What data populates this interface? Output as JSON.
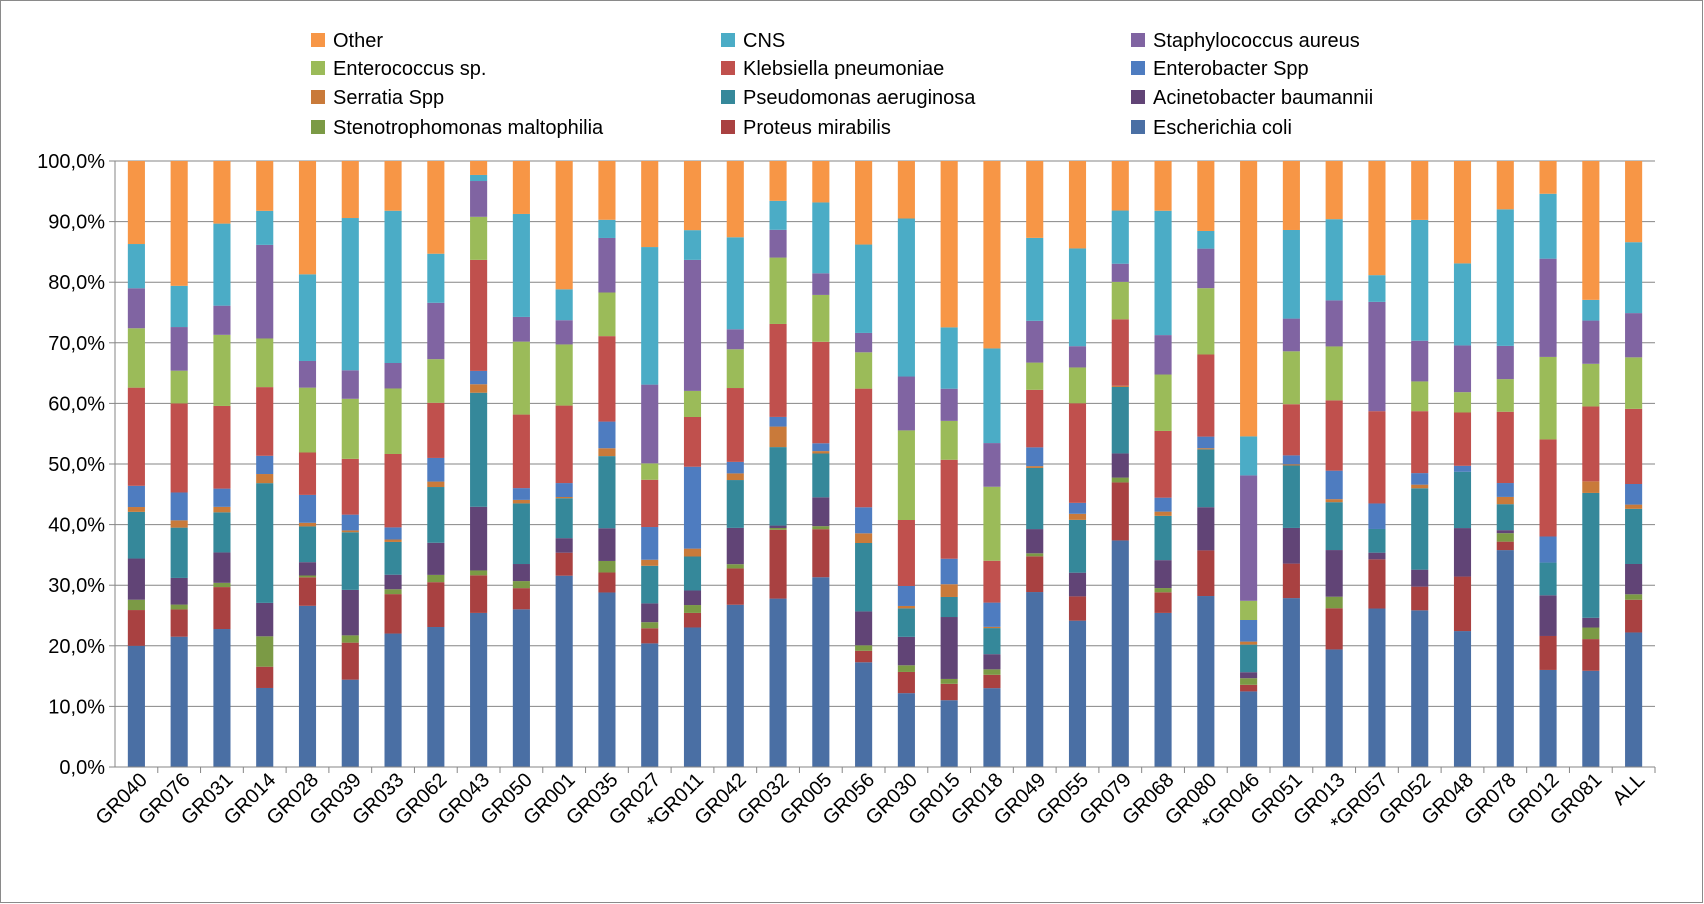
{
  "chart_data": {
    "type": "bar",
    "stacked": true,
    "ylim": [
      0,
      100
    ],
    "y_ticks": [
      "0,0%",
      "10,0%",
      "20,0%",
      "30,0%",
      "40,0%",
      "50,0%",
      "60,0%",
      "70,0%",
      "80,0%",
      "90,0%",
      "100,0%"
    ],
    "grid": true,
    "legend_position": "top",
    "categories": [
      "GR040",
      "GR076",
      "GR031",
      "GR014",
      "GR028",
      "GR039",
      "GR033",
      "GR062",
      "GR043",
      "GR050",
      "GR001",
      "GR035",
      "GR027",
      "*GR011",
      "GR042",
      "GR032",
      "GR005",
      "GR056",
      "GR030",
      "GR015",
      "GR018",
      "GR049",
      "GR055",
      "GR079",
      "GR068",
      "GR080",
      "*GR046",
      "GR051",
      "GR013",
      "*GR057",
      "GR052",
      "GR048",
      "GR078",
      "GR012",
      "GR081",
      "ALL"
    ],
    "series": [
      {
        "name": "Escherichia coli",
        "color": "#4a6fa4",
        "values": [
          20,
          21.5,
          22.7,
          13,
          26.6,
          14.4,
          22,
          23.1,
          25.4,
          26.8,
          31.6,
          28.8,
          20.4,
          23,
          26.8,
          27.9,
          31.6,
          17.3,
          12.2,
          11,
          13,
          28.9,
          24.1,
          37.5,
          25.4,
          28.1,
          12.6,
          28.4,
          19.4,
          26.1,
          25.8,
          22.7,
          35.9,
          16,
          15.8,
          22.2
        ]
      },
      {
        "name": "Proteus mirabilis",
        "color": "#a94141",
        "values": [
          5.9,
          4.5,
          6.9,
          3.5,
          4.7,
          6.1,
          6.5,
          7.4,
          6.2,
          3.6,
          3.8,
          3.3,
          2.5,
          2.4,
          6,
          11.4,
          8,
          1.9,
          3.5,
          2.7,
          2.2,
          5.9,
          4,
          9.6,
          3.4,
          7.5,
          1.1,
          5.8,
          6.8,
          8.1,
          3.9,
          9.1,
          1.4,
          5.6,
          5.2,
          5.4
        ]
      },
      {
        "name": "Stenotrophomonas maltophilia",
        "color": "#7b9a45",
        "values": [
          1.7,
          0.8,
          0.7,
          5,
          0.3,
          1.2,
          0.8,
          1.2,
          0.8,
          1.2,
          0,
          1.9,
          1,
          1.3,
          0.7,
          0.3,
          0.5,
          0.9,
          1.1,
          0.8,
          0.9,
          0.5,
          0,
          0.8,
          0.7,
          0,
          1.1,
          0,
          1.9,
          0,
          0,
          0,
          1.4,
          0,
          1.9,
          0.9
        ]
      },
      {
        "name": "Acinetobacter baumannii",
        "color": "#614476",
        "values": [
          6.8,
          4.4,
          5,
          5.5,
          2.2,
          7.5,
          2.4,
          5.3,
          10.5,
          2.9,
          2.4,
          5.4,
          3.1,
          2.4,
          6,
          0.4,
          4.8,
          5.6,
          4.7,
          10.2,
          2.5,
          4,
          3.9,
          4,
          4.6,
          7.1,
          1,
          6,
          7.7,
          1.1,
          2.8,
          8.1,
          0.5,
          6.7,
          1.6,
          5
        ]
      },
      {
        "name": "Pseudomonas aeruginosa",
        "color": "#35889a",
        "values": [
          7.7,
          8.3,
          6.6,
          19.7,
          5.9,
          9.5,
          5.4,
          9.2,
          18.8,
          10.3,
          6.6,
          11.9,
          6.2,
          5.6,
          7.9,
          13,
          7.3,
          11.3,
          4.7,
          3.3,
          4.3,
          10.1,
          8.7,
          11,
          7.3,
          9.5,
          4.6,
          10.5,
          7.9,
          3.9,
          13.4,
          9.4,
          4.3,
          5.4,
          20.5,
          9.1
        ]
      },
      {
        "name": "Serratia Spp",
        "color": "#c97a3a",
        "values": [
          0.8,
          1.2,
          0.9,
          1.5,
          0.6,
          0.3,
          0.4,
          0.9,
          1.4,
          0.6,
          0.2,
          1.3,
          1,
          1.3,
          1.1,
          3.4,
          0.4,
          1.6,
          0.4,
          2.1,
          0.2,
          0.3,
          1,
          0.2,
          0.7,
          0.2,
          0.5,
          0.2,
          0.5,
          0,
          0.6,
          0,
          1.2,
          0,
          1.9,
          0.7
        ]
      },
      {
        "name": "Enterobacter Spp",
        "color": "#4e7cc0",
        "values": [
          3.5,
          4.6,
          3,
          3,
          4.6,
          2.6,
          2,
          3.9,
          2.2,
          2,
          2.3,
          4.4,
          5.4,
          13.5,
          1.9,
          1.6,
          1.3,
          4.3,
          3.3,
          4.2,
          4,
          3.1,
          1.8,
          0,
          2.3,
          1.9,
          3.6,
          1.5,
          4.7,
          4.2,
          1.9,
          1,
          2.3,
          4.3,
          0,
          3.4
        ]
      },
      {
        "name": "Klebsiella pneumoniae",
        "color": "#c0504d",
        "values": [
          16.2,
          14.7,
          13.6,
          11.3,
          7,
          9.2,
          12.1,
          9.1,
          18.3,
          12.5,
          12.8,
          14.1,
          7.8,
          8.2,
          12.2,
          15.4,
          16.9,
          19.6,
          10.9,
          16.3,
          6.9,
          9.5,
          16.4,
          11,
          11,
          13.5,
          0,
          8.6,
          11.6,
          15.2,
          10.2,
          8.9,
          11.8,
          16,
          12.3,
          12.4
        ]
      },
      {
        "name": "Enterococcus sp.",
        "color": "#9bbb59",
        "values": [
          9.8,
          5.4,
          11.7,
          8,
          10.7,
          9.9,
          10.8,
          7.2,
          7.1,
          12.4,
          10.1,
          7.2,
          2.7,
          4.3,
          6.4,
          11,
          7.8,
          6,
          14.8,
          6.4,
          12.2,
          4.5,
          5.9,
          6.2,
          9.3,
          10.9,
          3.2,
          8.9,
          8.9,
          0,
          4.9,
          3.4,
          5.4,
          13.6,
          7,
          8.5
        ]
      },
      {
        "name": "Staphylococcus aureus",
        "color": "#8064a2",
        "values": [
          6.6,
          7.2,
          4.8,
          15.4,
          4.4,
          4.7,
          4.2,
          9.3,
          5.9,
          4.2,
          4,
          9,
          13,
          21.6,
          3.3,
          4.6,
          3.6,
          3.2,
          8.9,
          5.3,
          7.2,
          6.9,
          3.5,
          3,
          6.5,
          6.5,
          20.9,
          5.5,
          7.6,
          18,
          6.7,
          7.8,
          5.5,
          16.2,
          7.1,
          7.3
        ]
      },
      {
        "name": "CNS",
        "color": "#4bacc6",
        "values": [
          7.3,
          6.8,
          13.5,
          5.6,
          14.3,
          25.1,
          25.1,
          8.1,
          1,
          17.5,
          5.1,
          3,
          22.7,
          4.9,
          15.2,
          4.8,
          11.8,
          14.6,
          26.1,
          10.1,
          15.6,
          13.7,
          16.1,
          8.8,
          20.5,
          2.9,
          6.5,
          14.9,
          13.4,
          4.4,
          19.9,
          13.7,
          22.6,
          10.7,
          3.4,
          11.7
        ]
      },
      {
        "name": "Other",
        "color": "#f79646",
        "values": [
          13.7,
          20.6,
          10.3,
          8.2,
          18.7,
          9.4,
          8.2,
          15.3,
          2.3,
          9,
          21.2,
          9.7,
          14.2,
          11.4,
          12.6,
          6.6,
          6.9,
          13.8,
          9.5,
          27.4,
          30.9,
          12.7,
          14.4,
          8.2,
          8.2,
          11.5,
          45.9,
          11.6,
          9.6,
          18.8,
          9.7,
          17.1,
          8,
          5.4,
          22.8,
          13.4
        ]
      }
    ],
    "legend_order": [
      "Other",
      "CNS",
      "Staphylococcus aureus",
      "Enterococcus sp.",
      "Klebsiella pneumoniae",
      "Enterobacter Spp",
      "Serratia Spp",
      "Pseudomonas aeruginosa",
      "Acinetobacter baumannii",
      "Stenotrophomonas maltophilia",
      "Proteus mirabilis",
      "Escherichia coli"
    ]
  }
}
